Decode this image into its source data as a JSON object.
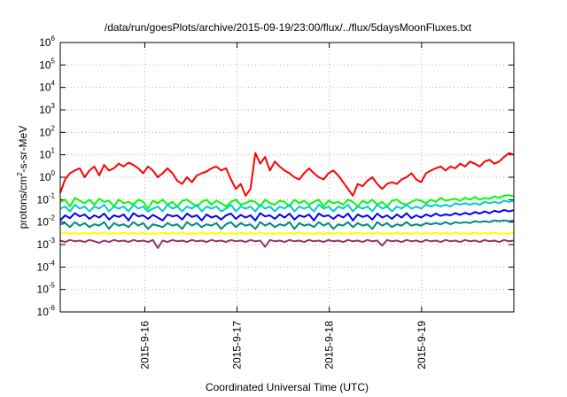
{
  "chart_data": {
    "type": "line",
    "title": "/data/run/goesPlots/archive/2015-09-19/23:00/flux/../flux/5daysMoonFluxes.txt",
    "xlabel": "Coordinated Universal Time (UTC)",
    "ylabel": "protons/cm2-s-sr-MeV",
    "ylabel_parts": {
      "pre": "protons/cm",
      "sup": "2",
      "post": "-s-sr-MeV"
    },
    "yscale": "log",
    "ylim_exponents": [
      -6,
      6
    ],
    "y_ticks": [
      {
        "base": "10",
        "exp": "6"
      },
      {
        "base": "10",
        "exp": "5"
      },
      {
        "base": "10",
        "exp": "4"
      },
      {
        "base": "10",
        "exp": "3"
      },
      {
        "base": "10",
        "exp": "2"
      },
      {
        "base": "10",
        "exp": "1"
      },
      {
        "base": "10",
        "exp": "0"
      },
      {
        "base": "10",
        "exp": "-1"
      },
      {
        "base": "10",
        "exp": "-2"
      },
      {
        "base": "10",
        "exp": "-3"
      },
      {
        "base": "10",
        "exp": "-4"
      },
      {
        "base": "10",
        "exp": "-5"
      },
      {
        "base": "10",
        "exp": "-6"
      }
    ],
    "x_range_days": [
      "2015-9-15 02:00",
      "2015-9-20 00:00"
    ],
    "x_ticks": [
      "2015-9-16",
      "2015-9-17",
      "2015-9-18",
      "2015-9-19"
    ],
    "grid": true,
    "series": [
      {
        "color": "#ff0000",
        "values": [
          0.2,
          0.8,
          1.5,
          2.0,
          2.5,
          1.0,
          2.0,
          3.0,
          1.2,
          3.5,
          2.0,
          2.5,
          4.0,
          3.0,
          4.5,
          3.5,
          2.5,
          1.5,
          3.0,
          2.0,
          1.0,
          1.5,
          2.5,
          1.5,
          0.7,
          0.5,
          1.0,
          0.6,
          1.2,
          1.5,
          1.8,
          2.5,
          3.0,
          2.0,
          2.5,
          0.8,
          0.3,
          0.5,
          0.15,
          0.3,
          12.0,
          4.0,
          8.0,
          2.0,
          5.0,
          3.0,
          2.0,
          1.5,
          1.0,
          0.8,
          1.5,
          2.5,
          1.5,
          1.0,
          0.8,
          1.5,
          2.0,
          1.2,
          0.6,
          0.3,
          0.15,
          0.5,
          0.4,
          0.7,
          1.0,
          0.5,
          0.3,
          0.5,
          0.6,
          0.5,
          0.8,
          1.0,
          1.5,
          0.8,
          0.6,
          1.5,
          2.0,
          2.5,
          3.0,
          2.0,
          3.0,
          2.5,
          4.0,
          3.0,
          5.0,
          4.0,
          3.0,
          5.0,
          6.0,
          4.0,
          5.0,
          8.0,
          12.0,
          10.0
        ]
      },
      {
        "color": "#00ff00",
        "values": [
          0.08,
          0.1,
          0.05,
          0.12,
          0.09,
          0.07,
          0.1,
          0.06,
          0.11,
          0.08,
          0.09,
          0.05,
          0.1,
          0.07,
          0.08,
          0.06,
          0.1,
          0.08,
          0.04,
          0.09,
          0.07,
          0.1,
          0.06,
          0.08,
          0.05,
          0.09,
          0.1,
          0.07,
          0.05,
          0.08,
          0.1,
          0.06,
          0.09,
          0.07,
          0.05,
          0.08,
          0.1,
          0.06,
          0.07,
          0.09,
          0.08,
          0.05,
          0.1,
          0.07,
          0.06,
          0.09,
          0.08,
          0.05,
          0.1,
          0.07,
          0.09,
          0.06,
          0.08,
          0.1,
          0.05,
          0.09,
          0.07,
          0.08,
          0.06,
          0.1,
          0.08,
          0.05,
          0.09,
          0.07,
          0.1,
          0.06,
          0.08,
          0.05,
          0.09,
          0.1,
          0.07,
          0.06,
          0.08,
          0.1,
          0.09,
          0.07,
          0.1,
          0.08,
          0.12,
          0.09,
          0.1,
          0.11,
          0.09,
          0.12,
          0.1,
          0.13,
          0.1,
          0.12,
          0.11,
          0.14,
          0.12,
          0.15,
          0.16,
          0.14
        ]
      },
      {
        "color": "#00cccc",
        "values": [
          0.04,
          0.05,
          0.03,
          0.06,
          0.04,
          0.05,
          0.03,
          0.05,
          0.04,
          0.06,
          0.03,
          0.05,
          0.04,
          0.05,
          0.03,
          0.06,
          0.04,
          0.05,
          0.03,
          0.04,
          0.05,
          0.03,
          0.06,
          0.04,
          0.05,
          0.03,
          0.05,
          0.04,
          0.06,
          0.03,
          0.05,
          0.04,
          0.05,
          0.03,
          0.04,
          0.06,
          0.03,
          0.05,
          0.04,
          0.05,
          0.03,
          0.06,
          0.04,
          0.05,
          0.03,
          0.05,
          0.04,
          0.06,
          0.03,
          0.05,
          0.04,
          0.05,
          0.03,
          0.06,
          0.04,
          0.05,
          0.03,
          0.05,
          0.04,
          0.06,
          0.03,
          0.05,
          0.04,
          0.05,
          0.03,
          0.06,
          0.04,
          0.05,
          0.03,
          0.05,
          0.04,
          0.06,
          0.04,
          0.05,
          0.04,
          0.06,
          0.05,
          0.06,
          0.05,
          0.06,
          0.05,
          0.07,
          0.06,
          0.07,
          0.06,
          0.07,
          0.06,
          0.08,
          0.07,
          0.08,
          0.07,
          0.09,
          0.08,
          0.09
        ]
      },
      {
        "color": "#0000ff",
        "values": [
          0.012,
          0.02,
          0.015,
          0.025,
          0.018,
          0.022,
          0.014,
          0.02,
          0.016,
          0.024,
          0.013,
          0.02,
          0.017,
          0.022,
          0.012,
          0.025,
          0.018,
          0.02,
          0.014,
          0.021,
          0.016,
          0.012,
          0.022,
          0.018,
          0.02,
          0.013,
          0.024,
          0.017,
          0.02,
          0.012,
          0.022,
          0.016,
          0.019,
          0.013,
          0.02,
          0.024,
          0.014,
          0.021,
          0.016,
          0.02,
          0.012,
          0.025,
          0.018,
          0.02,
          0.014,
          0.022,
          0.016,
          0.024,
          0.013,
          0.02,
          0.017,
          0.022,
          0.012,
          0.024,
          0.018,
          0.02,
          0.014,
          0.021,
          0.016,
          0.024,
          0.012,
          0.022,
          0.017,
          0.02,
          0.013,
          0.024,
          0.016,
          0.02,
          0.014,
          0.022,
          0.016,
          0.025,
          0.015,
          0.02,
          0.016,
          0.022,
          0.018,
          0.024,
          0.019,
          0.022,
          0.02,
          0.025,
          0.021,
          0.026,
          0.022,
          0.028,
          0.024,
          0.03,
          0.025,
          0.032,
          0.028,
          0.035,
          0.03,
          0.034
        ]
      },
      {
        "color": "#008888",
        "values": [
          0.008,
          0.009,
          0.006,
          0.01,
          0.007,
          0.009,
          0.006,
          0.008,
          0.007,
          0.01,
          0.005,
          0.009,
          0.007,
          0.008,
          0.006,
          0.01,
          0.007,
          0.009,
          0.005,
          0.008,
          0.007,
          0.006,
          0.009,
          0.007,
          0.008,
          0.005,
          0.01,
          0.007,
          0.009,
          0.006,
          0.008,
          0.007,
          0.009,
          0.005,
          0.008,
          0.01,
          0.006,
          0.009,
          0.007,
          0.008,
          0.005,
          0.01,
          0.007,
          0.009,
          0.006,
          0.008,
          0.007,
          0.01,
          0.005,
          0.009,
          0.007,
          0.008,
          0.006,
          0.01,
          0.007,
          0.009,
          0.005,
          0.008,
          0.007,
          0.01,
          0.006,
          0.009,
          0.007,
          0.008,
          0.005,
          0.01,
          0.007,
          0.009,
          0.006,
          0.008,
          0.007,
          0.01,
          0.007,
          0.008,
          0.007,
          0.009,
          0.008,
          0.009,
          0.008,
          0.01,
          0.008,
          0.01,
          0.009,
          0.01,
          0.009,
          0.011,
          0.01,
          0.011,
          0.01,
          0.012,
          0.011,
          0.012,
          0.011,
          0.012
        ]
      },
      {
        "color": "#ffff00",
        "values": [
          0.003,
          0.0035,
          0.003,
          0.0032,
          0.003,
          0.0034,
          0.003,
          0.0033,
          0.003,
          0.0035,
          0.003,
          0.0032,
          0.003,
          0.0034,
          0.003,
          0.0033,
          0.003,
          0.0035,
          0.003,
          0.0032,
          0.003,
          0.0034,
          0.003,
          0.0033,
          0.003,
          0.0035,
          0.003,
          0.0032,
          0.003,
          0.0034,
          0.003,
          0.0033,
          0.003,
          0.0035,
          0.003,
          0.0032,
          0.003,
          0.0034,
          0.003,
          0.0033,
          0.003,
          0.0035,
          0.003,
          0.0032,
          0.003,
          0.0034,
          0.003,
          0.0033,
          0.003,
          0.0035,
          0.003,
          0.0032,
          0.003,
          0.0034,
          0.003,
          0.0033,
          0.003,
          0.0035,
          0.003,
          0.0032,
          0.003,
          0.0034,
          0.003,
          0.0033,
          0.003,
          0.0035,
          0.003,
          0.0032,
          0.003,
          0.0034,
          0.003,
          0.0033,
          0.003,
          0.0035,
          0.003,
          0.0032,
          0.003,
          0.0034,
          0.003,
          0.0033,
          0.003,
          0.0035,
          0.003,
          0.0032,
          0.003,
          0.0034,
          0.003,
          0.0033,
          0.003,
          0.0035,
          0.003,
          0.0032,
          0.003,
          0.0034
        ]
      },
      {
        "color": "#993366",
        "values": [
          0.0015,
          0.0013,
          0.0016,
          0.0014,
          0.0015,
          0.0013,
          0.0016,
          0.0014,
          0.0012,
          0.0015,
          0.0013,
          0.0016,
          0.0014,
          0.0015,
          0.0013,
          0.0016,
          0.0014,
          0.0015,
          0.0013,
          0.0016,
          0.0007,
          0.0015,
          0.0013,
          0.0016,
          0.0014,
          0.0015,
          0.0013,
          0.0016,
          0.0014,
          0.0015,
          0.0013,
          0.0016,
          0.0014,
          0.0015,
          0.0013,
          0.0016,
          0.0014,
          0.0015,
          0.0013,
          0.0016,
          0.0014,
          0.0015,
          0.0008,
          0.0016,
          0.0014,
          0.0015,
          0.0013,
          0.0016,
          0.0014,
          0.0015,
          0.0013,
          0.0016,
          0.0014,
          0.0015,
          0.0013,
          0.0016,
          0.0014,
          0.0015,
          0.0013,
          0.0016,
          0.0014,
          0.0015,
          0.0013,
          0.0016,
          0.0014,
          0.0015,
          0.0009,
          0.0016,
          0.0014,
          0.0015,
          0.0013,
          0.0016,
          0.0014,
          0.0015,
          0.0013,
          0.0016,
          0.0014,
          0.0015,
          0.0013,
          0.0016,
          0.0014,
          0.0015,
          0.0013,
          0.0016,
          0.0014,
          0.0015,
          0.0013,
          0.0016,
          0.0014,
          0.0015,
          0.0013,
          0.0016,
          0.0014,
          0.0015
        ]
      }
    ]
  }
}
